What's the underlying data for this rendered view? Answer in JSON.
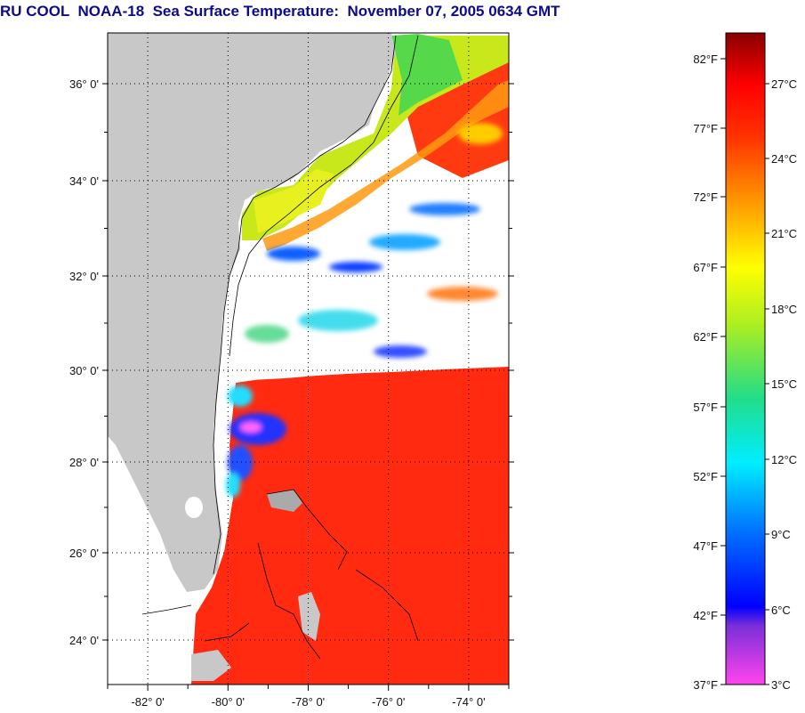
{
  "title": "RU COOL  NOAA-18  Sea Surface Temperature:  November 07, 2005 0634 GMT",
  "map": {
    "lat_ticks": [
      "36° 0'",
      "34° 0'",
      "32° 0'",
      "30° 0'",
      "28° 0'",
      "26° 0'",
      "24° 0'"
    ],
    "lat_values": [
      36,
      34,
      32,
      30,
      28,
      26,
      24
    ],
    "lon_ticks": [
      "-82° 0'",
      "-80° 0'",
      "-78° 0'",
      "-76° 0'",
      "-74° 0'"
    ],
    "lon_values": [
      -82,
      -80,
      -78,
      -76,
      -74
    ],
    "lat_range": [
      23,
      37
    ],
    "lon_range": [
      -83,
      -73
    ],
    "grid": "dotted",
    "colors": {
      "land": "#c8c8c8",
      "cloud": "#ffffff",
      "coastline": "#000000"
    }
  },
  "colorbar": {
    "fahrenheit_labels": [
      "82°F",
      "77°F",
      "72°F",
      "67°F",
      "62°F",
      "57°F",
      "52°F",
      "47°F",
      "42°F",
      "37°F"
    ],
    "celsius_labels": [
      "27°C",
      "24°C",
      "21°C",
      "18°C",
      "15°C",
      "12°C",
      "9°C",
      "6°C",
      "3°C"
    ],
    "range_c": [
      3,
      28.5
    ],
    "colors": [
      "#ff33dd",
      "#7a2fd8",
      "#0000ff",
      "#0088ff",
      "#00ffff",
      "#33dd66",
      "#88dd22",
      "#ffff00",
      "#ff9900",
      "#ff3300",
      "#ff0000",
      "#880000"
    ]
  }
}
